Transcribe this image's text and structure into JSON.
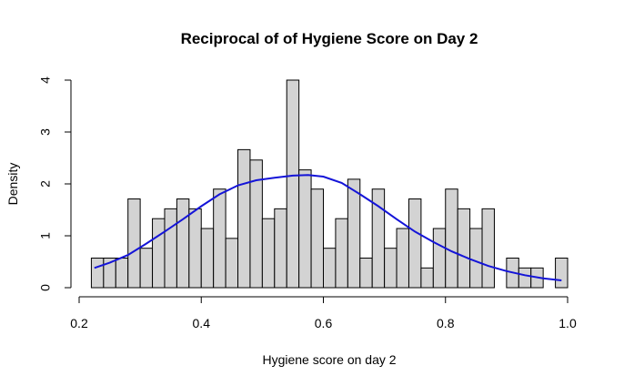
{
  "chart_data": {
    "type": "bar",
    "title": "Reciprocal of of Hygiene Score on Day 2",
    "xlabel": "Hygiene score on day 2",
    "ylabel": "Density",
    "xlim": [
      0.2,
      1.0
    ],
    "ylim": [
      0,
      4
    ],
    "x_ticks": [
      "0.2",
      "0.4",
      "0.6",
      "0.8",
      "1.0"
    ],
    "y_ticks": [
      "0",
      "1",
      "2",
      "3",
      "4"
    ],
    "bin_width": 0.02,
    "bin_starts": [
      0.22,
      0.24,
      0.26,
      0.28,
      0.3,
      0.32,
      0.34,
      0.36,
      0.38,
      0.4,
      0.42,
      0.44,
      0.46,
      0.48,
      0.5,
      0.52,
      0.54,
      0.56,
      0.58,
      0.6,
      0.62,
      0.64,
      0.66,
      0.68,
      0.7,
      0.72,
      0.74,
      0.76,
      0.78,
      0.8,
      0.82,
      0.84,
      0.86,
      0.88,
      0.9,
      0.92,
      0.94,
      0.96,
      0.98
    ],
    "values": [
      0.57,
      0.57,
      0.57,
      1.71,
      0.76,
      1.33,
      1.52,
      1.71,
      1.52,
      1.14,
      1.9,
      0.95,
      2.66,
      2.46,
      1.33,
      1.52,
      4.0,
      2.27,
      1.9,
      0.76,
      1.33,
      2.09,
      0.57,
      1.9,
      0.76,
      1.14,
      1.71,
      0.38,
      1.14,
      1.9,
      1.52,
      1.14,
      1.52,
      0,
      0.57,
      0.38,
      0.38,
      0,
      0.57
    ],
    "series": [
      {
        "name": "density curve",
        "x": [
          0.225,
          0.25,
          0.28,
          0.31,
          0.34,
          0.37,
          0.4,
          0.43,
          0.46,
          0.49,
          0.52,
          0.55,
          0.575,
          0.6,
          0.63,
          0.66,
          0.69,
          0.72,
          0.75,
          0.78,
          0.81,
          0.84,
          0.87,
          0.9,
          0.93,
          0.96,
          0.99
        ],
        "values": [
          0.38,
          0.48,
          0.63,
          0.85,
          1.08,
          1.32,
          1.57,
          1.8,
          1.97,
          2.07,
          2.12,
          2.16,
          2.17,
          2.14,
          2.02,
          1.8,
          1.57,
          1.32,
          1.08,
          0.88,
          0.7,
          0.55,
          0.42,
          0.32,
          0.24,
          0.18,
          0.14
        ]
      }
    ]
  }
}
